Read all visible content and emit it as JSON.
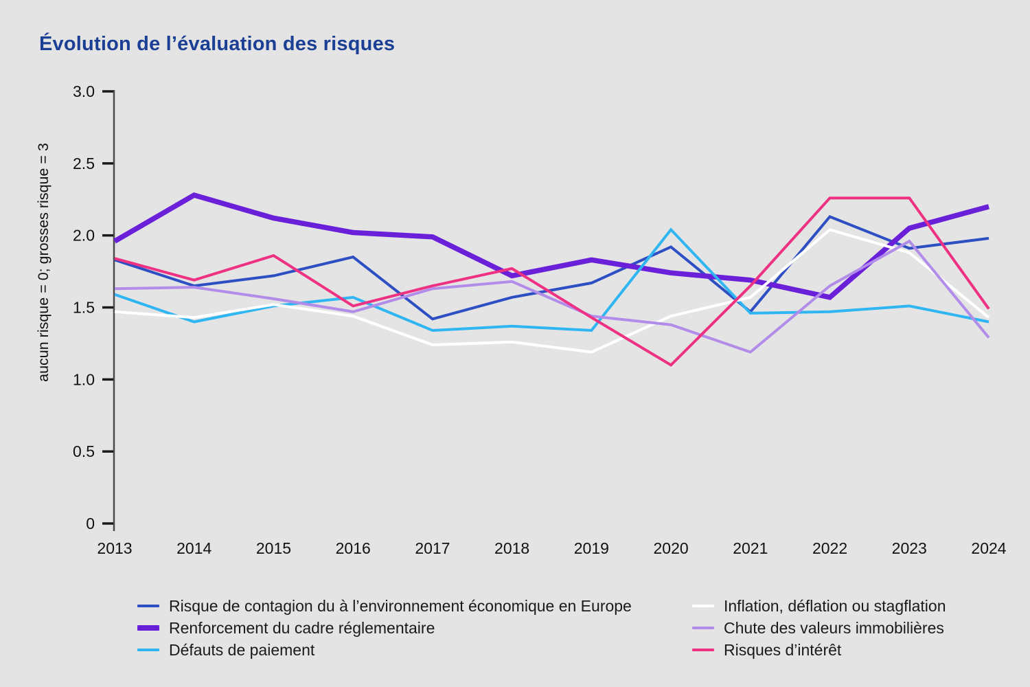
{
  "title": "Évolution de l’évaluation des risques",
  "y_axis": {
    "label": "aucun risque = 0; grosses risque = 3",
    "ticks": [
      "3.0",
      "2.5",
      "2.0",
      "1.5",
      "1.0",
      "0.5",
      "0"
    ],
    "tick_values": [
      3,
      2.5,
      2,
      1.5,
      1,
      0.5,
      0
    ],
    "min": 0,
    "max": 3
  },
  "x_axis": {
    "years": [
      "2013",
      "2014",
      "2015",
      "2016",
      "2017",
      "2018",
      "2019",
      "2020",
      "2021",
      "2022",
      "2023",
      "2024"
    ]
  },
  "chart_data": {
    "type": "line",
    "x": [
      2013,
      2014,
      2015,
      2016,
      2017,
      2018,
      2019,
      2020,
      2021,
      2022,
      2023,
      2024
    ],
    "ylim": [
      0,
      3
    ],
    "grid": false,
    "legend_position": "bottom",
    "title": "Évolution de l’évaluation des risques",
    "ylabel": "aucun risque = 0; grosses risque = 3",
    "xlabel": "",
    "series": [
      {
        "name": "Risque de contagion du à l’environnement économique en Europe",
        "color": "#2d4fc3",
        "width": 4,
        "values": [
          1.83,
          1.65,
          1.72,
          1.85,
          1.42,
          1.57,
          1.67,
          1.92,
          1.47,
          2.13,
          1.91,
          1.98
        ]
      },
      {
        "name": "Renforcement du cadre réglementaire",
        "color": "#6a1fd9",
        "width": 7.5,
        "values": [
          1.96,
          2.28,
          2.12,
          2.02,
          1.99,
          1.72,
          1.83,
          1.74,
          1.69,
          1.57,
          2.05,
          2.2
        ]
      },
      {
        "name": "Défauts de paiement",
        "color": "#2eb5f2",
        "width": 4,
        "values": [
          1.59,
          1.4,
          1.51,
          1.57,
          1.34,
          1.37,
          1.34,
          2.04,
          1.46,
          1.47,
          1.51,
          1.4
        ]
      },
      {
        "name": "Inflation, déflation ou stagflation",
        "color": "#ffffff",
        "width": 4,
        "values": [
          1.47,
          1.43,
          1.52,
          1.44,
          1.24,
          1.26,
          1.19,
          1.44,
          1.57,
          2.04,
          1.88,
          1.43
        ]
      },
      {
        "name": "Chute des valeurs immobilières",
        "color": "#b28ce9",
        "width": 4,
        "values": [
          1.63,
          1.64,
          1.56,
          1.47,
          1.63,
          1.68,
          1.44,
          1.38,
          1.19,
          1.65,
          1.96,
          1.29
        ]
      },
      {
        "name": "Risques d’intérêt",
        "color": "#ee3182",
        "width": 4,
        "values": [
          1.84,
          1.69,
          1.86,
          1.51,
          1.65,
          1.77,
          1.43,
          1.1,
          1.65,
          2.26,
          2.26,
          1.49
        ]
      }
    ]
  },
  "colors": {
    "background": "#e4e4e4",
    "title": "#1b3f94",
    "axis": "#4a4a4a",
    "tick_text": "#111111"
  },
  "legend": {
    "columns": [
      [
        0,
        1,
        2
      ],
      [
        3,
        4,
        5
      ]
    ]
  }
}
